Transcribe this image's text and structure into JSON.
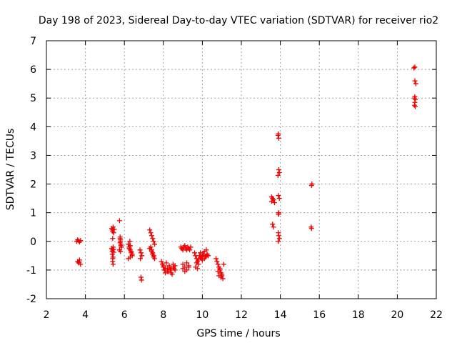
{
  "chart_data": {
    "type": "scatter",
    "title": "Day 198 of 2023, Sidereal Day-to-day VTEC variation (SDTVAR) for receiver rio2",
    "xlabel": "GPS time / hours",
    "ylabel": "SDTVAR / TECUs",
    "xlim": [
      2,
      22
    ],
    "ylim": [
      -2,
      7
    ],
    "xticks": [
      "2",
      "4",
      "6",
      "8",
      "10",
      "12",
      "14",
      "16",
      "18",
      "20",
      "22"
    ],
    "yticks": [
      "-2",
      "-1",
      "0",
      "1",
      "2",
      "3",
      "4",
      "5",
      "6",
      "7"
    ],
    "grid": true,
    "marker": "plus",
    "color": "#ee0000",
    "series": [
      {
        "name": "rio2",
        "x": [
          3.55,
          3.6,
          3.65,
          3.7,
          3.75,
          3.6,
          3.65,
          3.7,
          3.75,
          3.68,
          5.35,
          5.38,
          5.4,
          5.42,
          5.45,
          5.48,
          5.35,
          5.38,
          5.4,
          5.42,
          5.45,
          5.38,
          5.4,
          5.42,
          5.4,
          5.42,
          5.45,
          5.4,
          5.75,
          5.78,
          5.8,
          5.82,
          5.85,
          5.75,
          5.78,
          5.8,
          5.82,
          5.8,
          5.78,
          6.2,
          6.25,
          6.3,
          6.35,
          6.4,
          6.2,
          6.25,
          6.3,
          6.35,
          6.4,
          6.3,
          6.28,
          6.8,
          6.85,
          6.9,
          6.85,
          6.88,
          6.82,
          7.3,
          7.35,
          7.4,
          7.45,
          7.5,
          7.55,
          7.35,
          7.4,
          7.45,
          7.5,
          7.55,
          7.3,
          7.4,
          7.45,
          7.5,
          7.9,
          7.95,
          8.0,
          8.05,
          8.1,
          8.15,
          8.2,
          8.25,
          8.3,
          8.35,
          8.4,
          8.45,
          8.5,
          8.55,
          8.6,
          8.0,
          8.1,
          8.2,
          8.3,
          8.4,
          8.5,
          8.6,
          8.9,
          8.95,
          9.0,
          9.05,
          9.1,
          9.15,
          9.2,
          9.25,
          9.3,
          9.35,
          9.4,
          9.0,
          9.1,
          9.2,
          9.3,
          9.0,
          9.1,
          9.2,
          9.3,
          9.6,
          9.65,
          9.7,
          9.75,
          9.8,
          9.85,
          9.9,
          9.95,
          10.0,
          10.05,
          10.1,
          10.15,
          10.2,
          10.25,
          10.3,
          9.7,
          9.8,
          9.9,
          10.0,
          10.1,
          10.2,
          9.65,
          9.75,
          10.7,
          10.75,
          10.8,
          10.85,
          10.9,
          10.95,
          11.0,
          11.05,
          11.1,
          10.8,
          10.9,
          11.0,
          10.85,
          10.95,
          13.55,
          13.6,
          13.65,
          13.7,
          13.6,
          13.65,
          13.55,
          13.65,
          13.88,
          13.9,
          13.92,
          13.95,
          13.88,
          13.92,
          13.9,
          13.95,
          13.9,
          13.92,
          13.9,
          13.92,
          13.95,
          13.9,
          13.92,
          15.6,
          15.62,
          15.58,
          15.6,
          20.85,
          20.9,
          20.95,
          20.9,
          20.88,
          20.92,
          20.9,
          20.88,
          20.92,
          20.9
        ],
        "y": [
          0.0,
          0.05,
          0.02,
          -0.02,
          0.03,
          -0.7,
          -0.75,
          -0.65,
          -0.8,
          -0.72,
          0.45,
          0.4,
          0.35,
          0.5,
          0.3,
          0.42,
          -0.25,
          -0.35,
          -0.3,
          -0.2,
          -0.28,
          -0.45,
          -0.6,
          -0.8,
          -0.7,
          -0.55,
          -0.38,
          0.1,
          0.72,
          0.1,
          0.0,
          -0.1,
          -0.2,
          -0.3,
          -0.05,
          0.05,
          -0.15,
          -0.35,
          0.15,
          -0.1,
          -0.2,
          -0.3,
          -0.4,
          -0.5,
          -0.6,
          -0.25,
          -0.15,
          -0.35,
          -0.45,
          -0.55,
          0.0,
          -0.3,
          -0.4,
          -0.5,
          -1.25,
          -1.35,
          -0.6,
          0.4,
          0.3,
          0.2,
          0.1,
          0.0,
          -0.1,
          -0.2,
          -0.3,
          -0.4,
          -0.5,
          -0.6,
          -0.25,
          -0.35,
          -0.45,
          -0.55,
          -0.7,
          -0.8,
          -0.9,
          -1.0,
          -1.1,
          -0.75,
          -0.95,
          -1.05,
          -0.85,
          -1.0,
          -1.1,
          -1.15,
          -0.9,
          -0.95,
          -1.0,
          -0.85,
          -0.95,
          -1.05,
          -0.9,
          -0.95,
          -0.8,
          -0.85,
          -0.2,
          -0.25,
          -0.3,
          -0.2,
          -0.15,
          -0.25,
          -0.3,
          -0.2,
          -0.25,
          -0.3,
          -0.2,
          -0.8,
          -0.9,
          -1.0,
          -0.85,
          -0.95,
          -1.05,
          -0.75,
          -0.9,
          -0.4,
          -0.5,
          -0.6,
          -0.7,
          -0.8,
          -0.5,
          -0.4,
          -0.6,
          -0.5,
          -0.45,
          -0.35,
          -0.55,
          -0.3,
          -0.45,
          -0.5,
          -0.75,
          -0.65,
          -0.55,
          -0.65,
          -0.6,
          -0.5,
          -0.9,
          -0.95,
          -0.6,
          -0.7,
          -0.8,
          -0.9,
          -1.0,
          -1.1,
          -1.2,
          -1.3,
          -0.8,
          -1.05,
          -0.95,
          -1.15,
          -1.2,
          -1.25,
          1.4,
          1.5,
          1.45,
          1.35,
          0.6,
          0.5,
          1.55,
          1.45,
          3.7,
          3.75,
          3.6,
          2.4,
          2.3,
          2.5,
          1.6,
          1.5,
          0.95,
          1.0,
          0.3,
          0.2,
          0.1,
          0.0,
          0.95,
          1.95,
          2.0,
          0.5,
          0.45,
          6.05,
          6.08,
          5.5,
          5.6,
          5.0,
          4.95,
          4.85,
          4.75,
          4.7,
          5.05
        ]
      }
    ]
  }
}
